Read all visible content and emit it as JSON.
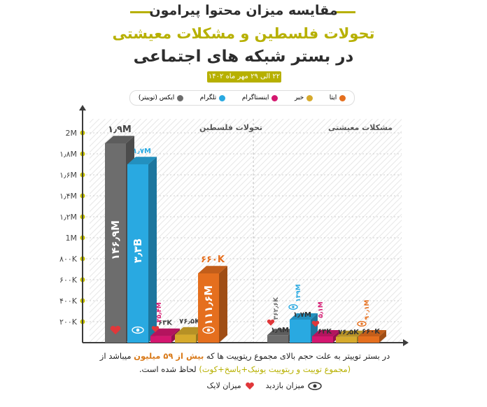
{
  "header": {
    "title_line1": "مقایسه میزان محتوا پیرامون",
    "title_line2": "تحولات فلسطین و مشکلات معیشتی",
    "title_line3": "در بستر شبکه های اجتماعی",
    "date_range": "۲۲ الی ۲۹ مهر ماه ۱۴۰۲",
    "accent_color": "#b7b000"
  },
  "legend": [
    {
      "label": "ایکس (توییتر)",
      "color": "#6d6d6d"
    },
    {
      "label": "تلگرام",
      "color": "#29a9e1"
    },
    {
      "label": "اینستاگرام",
      "color": "#d4176f"
    },
    {
      "label": "خبر",
      "color": "#d6aa2c"
    },
    {
      "label": "ایتا",
      "color": "#e56f1e"
    }
  ],
  "chart_data": {
    "type": "bar",
    "series_names": [
      "ایکس (توییتر)",
      "تلگرام",
      "اینستاگرام",
      "خبر",
      "ایتا"
    ],
    "y_tick_labels": [
      "2M",
      "۱٫۸M",
      "۱٫۶M",
      "۱٫۴M",
      "۱٫۲M",
      "1M",
      "۸۰۰K",
      "۶۰۰K",
      "۴۰۰K",
      "۲۰۰K"
    ],
    "ylim": [
      0,
      2000000
    ],
    "groups": [
      {
        "title": "تحولات فلسطین",
        "values": [
          1900000,
          1700000,
          63000,
          76500,
          660000
        ],
        "value_labels": [
          "۱٫۹M",
          "۱٫۷M",
          "۶۳K",
          "۷۶٫۵K",
          "۶۶۰K"
        ],
        "inner_labels": [
          "۱۴۶٫۹M",
          "۳٫۳B",
          "۳۵٫۴M",
          "",
          "۱۱۱٫۶M"
        ],
        "inner_icons": [
          "heart-icon",
          "eye-icon",
          "heart-icon",
          "",
          "eye-icon"
        ]
      },
      {
        "title": "مشکلات معیشتی",
        "values": [
          1900000,
          1700000,
          63000,
          76500,
          660000
        ],
        "value_labels": [
          "۱٫۹M",
          "۱٫۷M",
          "۶۳K",
          "۷۶٫۵K",
          "۶۶۰K"
        ],
        "above_labels": [
          "۳۶۲٫۶K",
          "۱۳۹M",
          "۵٫۱M",
          "",
          "۹۰٫۱M"
        ],
        "above_icons": [
          "heart-icon",
          "eye-icon",
          "heart-icon",
          "",
          "eye-icon"
        ]
      }
    ]
  },
  "footnote": {
    "text_part1": "در بستر توییتر به علت حجم بالای مجموع ریتوییت ها که ",
    "text_highlight": "بیش از ۵۹ میلیون",
    "text_part2": " میباشد از",
    "text_bracket": "(مجموع توییت و ریتوییت یونیک+پاسخ+کوت)",
    "text_part3": " لحاظ شده است."
  },
  "bottom_legend": {
    "views_label": "میزان بازدید",
    "likes_label": "میزان لایک",
    "like_color": "#e0373a"
  }
}
